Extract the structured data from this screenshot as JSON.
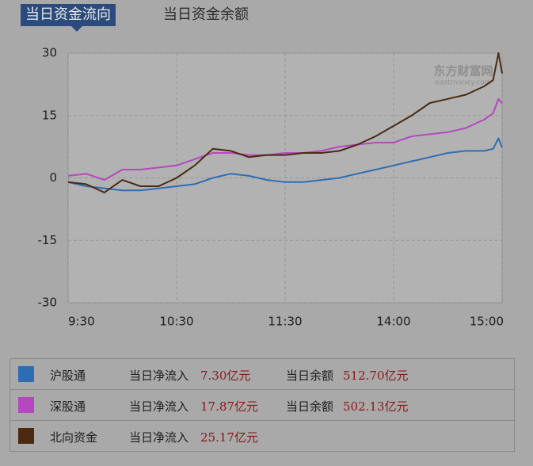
{
  "tabs": [
    "当日资金流向",
    "当日资金余额"
  ],
  "watermark": {
    "brand": "东方财富网",
    "site": "eastmoney.com"
  },
  "chart_data": {
    "type": "line",
    "x": [
      0,
      10,
      20,
      30,
      40,
      50,
      60,
      70,
      80,
      90,
      100,
      110,
      120,
      130,
      140,
      150,
      160,
      170,
      180,
      190,
      200,
      210,
      220,
      230,
      235,
      238,
      240
    ],
    "xlim": [
      0,
      240
    ],
    "xticks": [
      {
        "value": 0,
        "label": "9:30"
      },
      {
        "value": 60,
        "label": "10:30"
      },
      {
        "value": 120,
        "label": "11:30"
      },
      {
        "value": 180,
        "label": "14:00"
      },
      {
        "value": 240,
        "label": "15:00"
      }
    ],
    "ylim": [
      -30,
      30
    ],
    "yticks": [
      30,
      15,
      0,
      -15,
      -30
    ],
    "grid": true,
    "series": [
      {
        "name": "沪股通",
        "color": "#2f6db3",
        "values": [
          -1,
          -2,
          -2.5,
          -3,
          -3,
          -2.5,
          -2,
          -1.5,
          0,
          1,
          0.5,
          -0.5,
          -1,
          -1,
          -0.5,
          0,
          1,
          2,
          3,
          4,
          5,
          6,
          6.5,
          6.5,
          7,
          9.5,
          7.3
        ]
      },
      {
        "name": "深股通",
        "color": "#b548bf",
        "values": [
          0.5,
          1,
          -0.5,
          2,
          2,
          2.5,
          3,
          4.5,
          6,
          6,
          5.5,
          5.5,
          6,
          6,
          6.5,
          7.5,
          8,
          8.5,
          8.5,
          10,
          10.5,
          11,
          12,
          14,
          15.5,
          19,
          17.87
        ]
      },
      {
        "name": "北向资金",
        "color": "#4a2a10",
        "values": [
          -1,
          -1.5,
          -3.5,
          -0.5,
          -2,
          -2,
          0,
          3,
          7,
          6.5,
          5,
          5.5,
          5.5,
          6,
          6,
          6.5,
          8,
          10,
          12.5,
          15,
          18,
          19,
          20,
          22,
          23.5,
          30,
          25.17
        ]
      }
    ]
  },
  "summary": {
    "inflow_label": "当日净流入",
    "balance_label": "当日余额",
    "rows": [
      {
        "inflow": "7.30亿元",
        "balance": "512.70亿元"
      },
      {
        "inflow": "17.87亿元",
        "balance": "502.13亿元"
      },
      {
        "inflow": "25.17亿元"
      }
    ]
  }
}
